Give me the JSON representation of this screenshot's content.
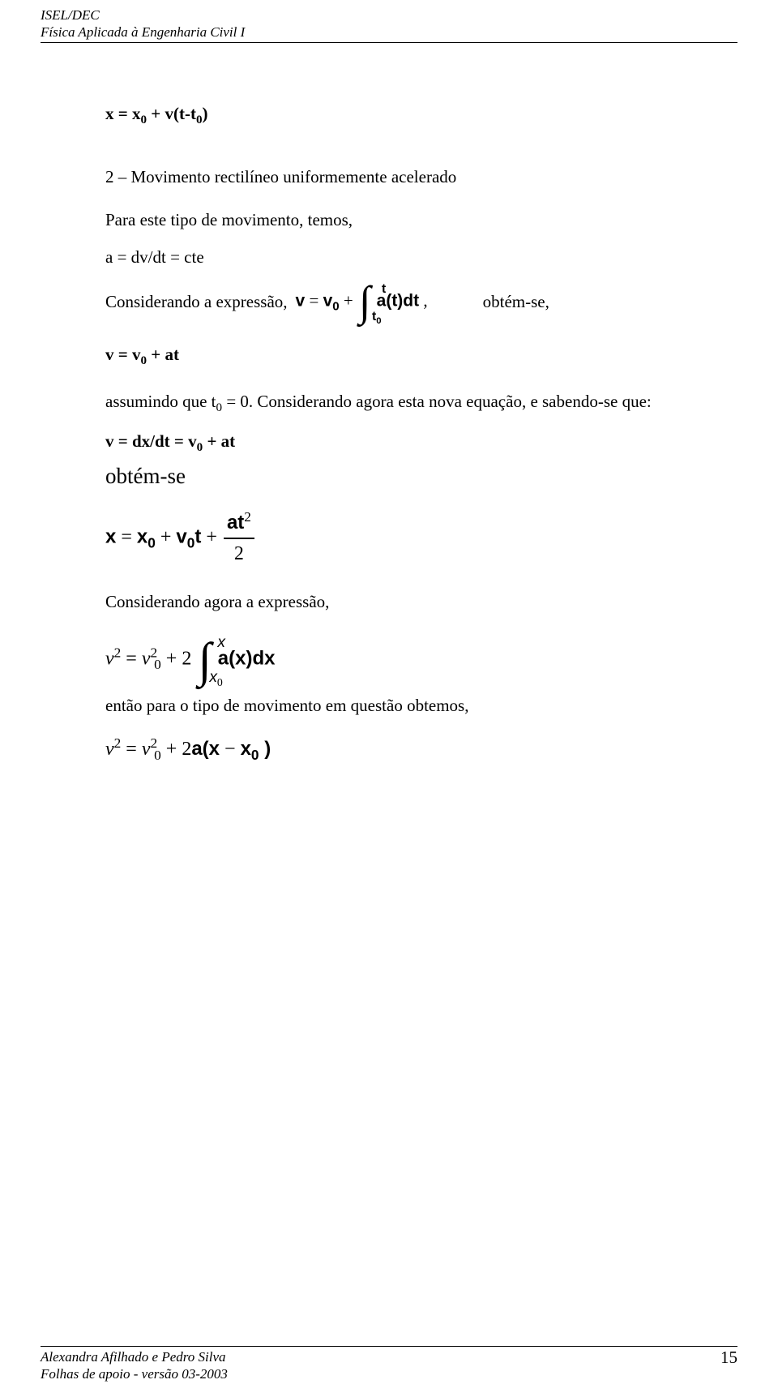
{
  "header": {
    "line1": "ISEL/DEC",
    "line2": "Física Aplicada à Engenharia Civil I"
  },
  "body": {
    "eq1_html": "x = x<span class='sub'>0</span> + v(t-t<span class='sub'>0</span>)",
    "heading": "2 – Movimento rectilíneo uniformemente acelerado",
    "p1": "Para este tipo de movimento, temos,",
    "eq2": "a = dv/dt = cte",
    "p2_prefix": "Considerando a expressão,",
    "eq3_html": "<span class='mathvar'>v</span> = <span class='mathvar'>v</span><span class='sub mathvar'>0</span> + <span class='int-wrap'><span class='bigint'>∫</span><span class='int-up mathvar'>t</span><span class='int-lo'><span class='mathvar'>t</span><span class='sub mathvar'>0</span></span></span>&nbsp;<span class='mathvar'>a(t)dt</span> ,",
    "p2_suffix": "obtém-se,",
    "eq4_html": "v = v<span class='sub'>0</span> + at",
    "p3_html": "assumindo que t<span class='sub'>0</span> = 0. Considerando agora esta nova equação, e sabendo-se que:",
    "eq5_html": "v = dx/dt = v<span class='sub'>0</span> + at",
    "p4": "obtém-se",
    "eq6_html": "<span class='mathvar'>x</span> = <span class='mathvar'>x</span><span class='sub mathvar'>0</span> + <span class='mathvar'>v</span><span class='sub mathvar'>0</span><span class='mathvar'>t</span> + <span class='frac'><span class='num'><span class='mathvar'>at</span><span class='sup'>2</span></span><span class='den'>2</span></span>",
    "p5": "Considerando agora a expressão,",
    "eq7_html": "<span style='font-style:italic'>v</span><span class='sup'>2</span> = <span style='font-style:italic'>v</span><span class='sup'>2</span><span class='sub' style='margin-left:-4px'>0</span> + 2 <span class='int-wrap'><span class='bigint'>∫</span><span class='int-up2'><span class='mathvar' style='font-style:italic;font-weight:normal'>x</span></span><span class='int-lo2'><span class='mathvar' style='font-style:italic;font-weight:normal'>x</span><span class='sub'>0</span></span></span>&nbsp;<span class='mathvar'>a(x)dx</span>",
    "p6": "então para o tipo de movimento em questão obtemos,",
    "eq8_html": "<span style='font-style:italic'>v</span><span class='sup'>2</span> = <span style='font-style:italic'>v</span><span class='sup'>2</span><span class='sub' style='margin-left:-4px'>0</span> + 2<span class='mathvar'>a(x</span> − <span class='mathvar'>x</span><span class='sub mathvar'>0</span><span class='mathvar'> )</span>"
  },
  "footer": {
    "left1": "Alexandra Afilhado e Pedro Silva",
    "left2": "Folhas de apoio - versão 03-2003",
    "page": "15"
  },
  "colors": {
    "text": "#000000",
    "background": "#ffffff"
  },
  "fonts": {
    "body_family": "Times New Roman",
    "math_bold_family": "Arial",
    "header_fontsize_pt": 13,
    "body_fontsize_pt": 16,
    "obtemse_large_fontsize_pt": 20
  }
}
